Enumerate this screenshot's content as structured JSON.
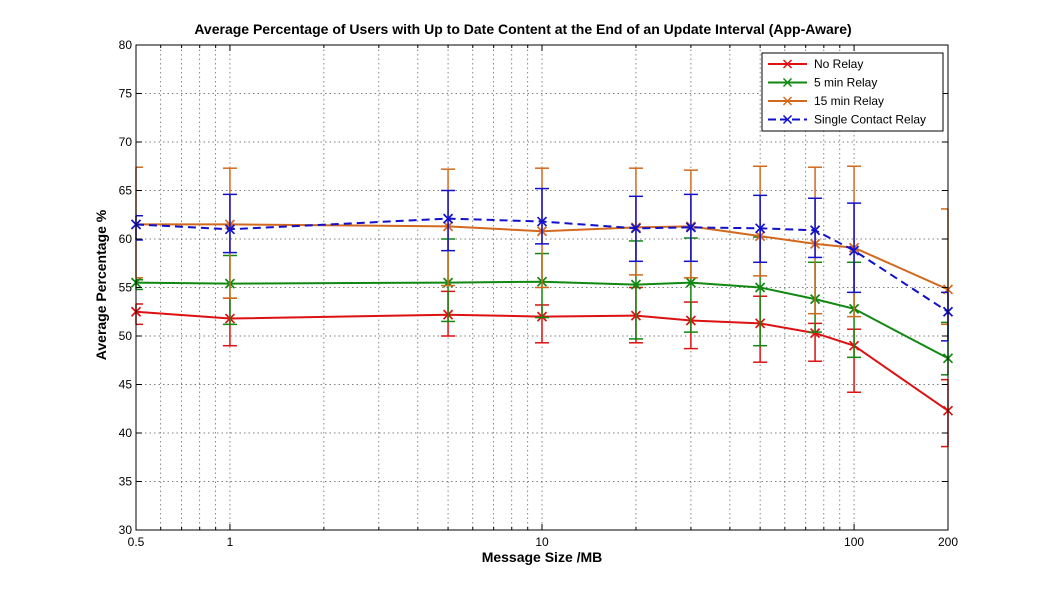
{
  "chart_data": {
    "type": "line",
    "title": "Average Percentage of Users with Up to Date Content at the End of an Update Interval (App-Aware)",
    "xlabel": "Message Size /MB",
    "ylabel": "Average Percentage %",
    "xscale": "log",
    "xlim": [
      0.5,
      200
    ],
    "ylim": [
      30,
      80
    ],
    "xticks": [
      0.5,
      1,
      10,
      100,
      200
    ],
    "xtick_labels": [
      "0.5",
      "1",
      "10",
      "100",
      "200"
    ],
    "yticks": [
      30,
      35,
      40,
      45,
      50,
      55,
      60,
      65,
      70,
      75,
      80
    ],
    "ytick_labels": [
      "30",
      "35",
      "40",
      "45",
      "50",
      "55",
      "60",
      "65",
      "70",
      "75",
      "80"
    ],
    "grid": true,
    "legend_position": "top-right",
    "x": [
      0.5,
      1,
      5,
      10,
      20,
      30,
      50,
      75,
      100,
      200
    ],
    "series": [
      {
        "name": "No Relay",
        "color": "#dd1111",
        "dashed": false,
        "values": [
          52.5,
          51.8,
          52.2,
          52.0,
          52.1,
          51.6,
          51.3,
          50.3,
          49.0,
          42.3
        ],
        "err_low": [
          51.2,
          49.0,
          50.0,
          49.3,
          49.3,
          48.7,
          47.3,
          47.4,
          44.2,
          38.6
        ],
        "err_high": [
          53.3,
          53.9,
          54.6,
          53.2,
          55.0,
          53.5,
          54.1,
          51.3,
          50.7,
          45.5
        ]
      },
      {
        "name": "5 min Relay",
        "color": "#118811",
        "dashed": false,
        "values": [
          55.5,
          55.4,
          55.5,
          55.6,
          55.3,
          55.5,
          55.0,
          53.8,
          52.8,
          47.7
        ],
        "err_low": [
          54.8,
          51.2,
          51.5,
          51.9,
          49.7,
          50.4,
          49.0,
          50.4,
          47.8,
          46.0
        ],
        "err_high": [
          55.8,
          58.3,
          60.0,
          58.5,
          59.8,
          60.1,
          60.2,
          57.6,
          57.6,
          51.4
        ]
      },
      {
        "name": "15 min Relay",
        "color": "#d2691e",
        "dashed": false,
        "values": [
          61.5,
          61.5,
          61.3,
          60.8,
          61.2,
          61.3,
          60.3,
          59.5,
          59.1,
          54.8
        ],
        "err_low": [
          56.0,
          53.9,
          55.2,
          55.0,
          56.3,
          56.0,
          56.2,
          52.3,
          52.0,
          51.2
        ],
        "err_high": [
          67.4,
          67.3,
          67.2,
          67.3,
          67.3,
          67.1,
          67.5,
          67.4,
          67.5,
          63.1
        ]
      },
      {
        "name": "Single Contact Relay",
        "color": "#1111cc",
        "dashed": true,
        "values": [
          61.5,
          61.0,
          62.1,
          61.8,
          61.1,
          61.2,
          61.1,
          60.9,
          58.8,
          52.5
        ],
        "err_low": [
          59.9,
          58.6,
          58.8,
          59.5,
          57.7,
          57.7,
          57.6,
          58.1,
          54.5,
          49.5
        ],
        "err_high": [
          62.4,
          64.6,
          65.0,
          65.2,
          64.4,
          64.6,
          64.5,
          64.2,
          63.7,
          54.5
        ]
      }
    ]
  }
}
